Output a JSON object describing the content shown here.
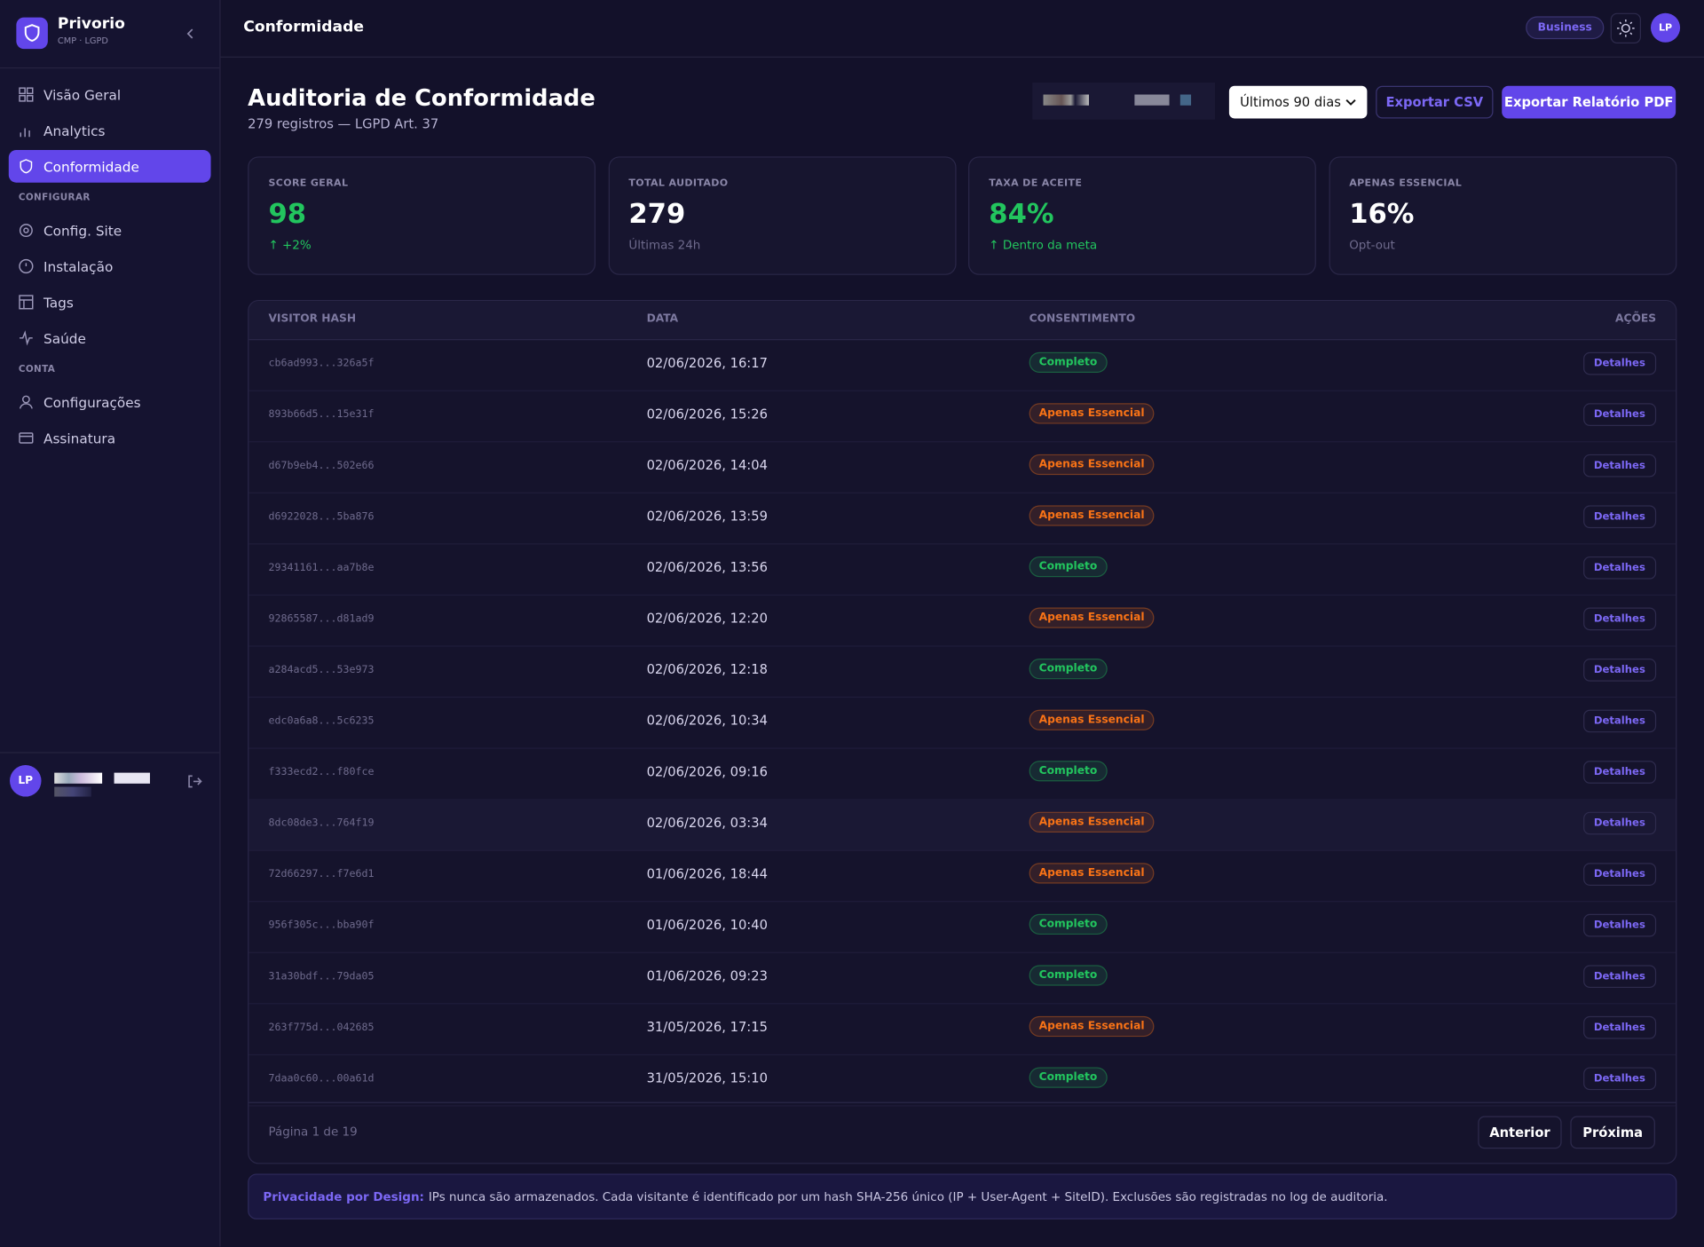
{
  "sidebar": {
    "brand": "Privorio",
    "brand_sub": "CMP · LGPD",
    "nav": [
      {
        "label": "Visão Geral",
        "icon": "grid"
      },
      {
        "label": "Analytics",
        "icon": "bars"
      },
      {
        "label": "Conformidade",
        "icon": "shield",
        "active": true
      },
      {
        "section": "CONFIGURAR"
      },
      {
        "label": "Config. Site",
        "icon": "gear"
      },
      {
        "label": "Instalação",
        "icon": "circle"
      },
      {
        "label": "Tags",
        "icon": "layout"
      },
      {
        "label": "Saúde",
        "icon": "pulse"
      },
      {
        "section": "CONTA"
      },
      {
        "label": "Configurações",
        "icon": "user"
      },
      {
        "label": "Assinatura",
        "icon": "card"
      }
    ],
    "user_initials": "LP"
  },
  "header": {
    "title": "Conformidade",
    "plan": "Business",
    "user_initials": "LP"
  },
  "page": {
    "title": "Auditoria de Conformidade",
    "subtitle": "279 registros — LGPD Art. 37",
    "period": "Últimos 90 dias",
    "export_csv": "Exportar CSV",
    "export_pdf": "Exportar Relatório PDF"
  },
  "stats": [
    {
      "label": "SCORE GERAL",
      "value": "98",
      "sub": "↑ +2%",
      "color": "#22c55e",
      "sub_color": "#22c55e"
    },
    {
      "label": "TOTAL AUDITADO",
      "value": "279",
      "sub": "Últimas 24h",
      "color": "#ffffff",
      "sub_color": "#6e6a8c"
    },
    {
      "label": "TAXA DE ACEITE",
      "value": "84%",
      "sub": "↑ Dentro da meta",
      "color": "#22c55e",
      "sub_color": "#22c55e"
    },
    {
      "label": "APENAS ESSENCIAL",
      "value": "16%",
      "sub": "Opt-out",
      "color": "#ffffff",
      "sub_color": "#6e6a8c"
    }
  ],
  "table": {
    "columns": [
      "VISITOR HASH",
      "DATA",
      "CONSENTIMENTO",
      "AÇÕES"
    ],
    "badge_colors": {
      "Completo": "#22c55e",
      "Apenas Essencial": "#f97316"
    },
    "rows": [
      [
        "cb6ad993...326a5f",
        "02/06/2026, 16:17",
        "Completo",
        "Detalhes"
      ],
      [
        "893b66d5...15e31f",
        "02/06/2026, 15:26",
        "Apenas Essencial",
        "Detalhes"
      ],
      [
        "d67b9eb4...502e66",
        "02/06/2026, 14:04",
        "Apenas Essencial",
        "Detalhes"
      ],
      [
        "d6922028...5ba876",
        "02/06/2026, 13:59",
        "Apenas Essencial",
        "Detalhes"
      ],
      [
        "29341161...aa7b8e",
        "02/06/2026, 13:56",
        "Completo",
        "Detalhes"
      ],
      [
        "92865587...d81ad9",
        "02/06/2026, 12:20",
        "Apenas Essencial",
        "Detalhes"
      ],
      [
        "a284acd5...53e973",
        "02/06/2026, 12:18",
        "Completo",
        "Detalhes"
      ],
      [
        "edc0a6a8...5c6235",
        "02/06/2026, 10:34",
        "Apenas Essencial",
        "Detalhes"
      ],
      [
        "f333ecd2...f80fce",
        "02/06/2026, 09:16",
        "Completo",
        "Detalhes"
      ],
      [
        "8dc08de3...764f19",
        "02/06/2026, 03:34",
        "Apenas Essencial",
        "Detalhes"
      ],
      [
        "72d66297...f7e6d1",
        "01/06/2026, 18:44",
        "Apenas Essencial",
        "Detalhes"
      ],
      [
        "956f305c...bba90f",
        "01/06/2026, 10:40",
        "Completo",
        "Detalhes"
      ],
      [
        "31a30bdf...79da05",
        "01/06/2026, 09:23",
        "Completo",
        "Detalhes"
      ],
      [
        "263f775d...042685",
        "31/05/2026, 17:15",
        "Apenas Essencial",
        "Detalhes"
      ],
      [
        "7daa0c60...00a61d",
        "31/05/2026, 15:10",
        "Completo",
        "Detalhes"
      ]
    ],
    "pagination": {
      "info": "Página 1 de 19",
      "prev": "Anterior",
      "next": "Próxima"
    }
  },
  "note": {
    "lead": "Privacidade por Design:",
    "text": "IPs nunca são armazenados. Cada visitante é identificado por um hash SHA-256 único (IP + User-Agent + SiteID). Exclusões são registradas no log de auditoria."
  }
}
